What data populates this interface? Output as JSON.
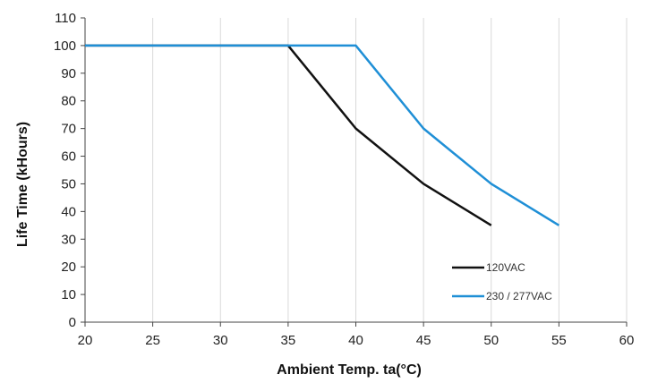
{
  "chart_data": {
    "type": "line",
    "xlabel": "Ambient  Temp. ta(°C)",
    "ylabel": "Life Time (kHours)",
    "xlim": [
      20,
      60
    ],
    "ylim": [
      0,
      110
    ],
    "x_ticks": [
      20,
      25,
      30,
      35,
      40,
      45,
      50,
      55,
      60
    ],
    "y_ticks": [
      0,
      10,
      20,
      30,
      40,
      50,
      60,
      70,
      80,
      90,
      100,
      110
    ],
    "grid": "vertical",
    "legend": "bottom-right",
    "series": [
      {
        "name": "120VAC",
        "color": "#111111",
        "points": [
          [
            20,
            100
          ],
          [
            35,
            100
          ],
          [
            40,
            70
          ],
          [
            45,
            50
          ],
          [
            50,
            35
          ]
        ]
      },
      {
        "name": "230 / 277VAC",
        "color": "#1f8fd6",
        "points": [
          [
            20,
            100
          ],
          [
            40,
            100
          ],
          [
            45,
            70
          ],
          [
            50,
            50
          ],
          [
            55,
            35
          ]
        ]
      }
    ]
  }
}
